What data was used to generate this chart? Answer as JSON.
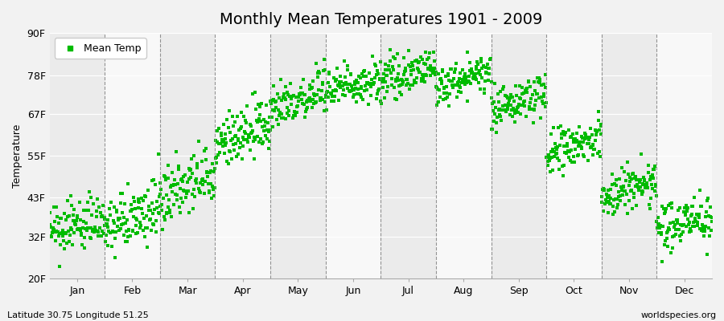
{
  "title": "Monthly Mean Temperatures 1901 - 2009",
  "ylabel": "Temperature",
  "subtitle_left": "Latitude 30.75 Longitude 51.25",
  "subtitle_right": "worldspecies.org",
  "legend_label": "Mean Temp",
  "dot_color": "#00bb00",
  "background_color": "#f2f2f2",
  "plot_bg_color": "#ebebeb",
  "stripe_color": "#f8f8f8",
  "ylim": [
    20,
    90
  ],
  "yticks": [
    20,
    32,
    43,
    55,
    67,
    78,
    90
  ],
  "ytick_labels": [
    "20F",
    "32F",
    "43F",
    "55F",
    "67F",
    "78F",
    "90F"
  ],
  "months": [
    "Jan",
    "Feb",
    "Mar",
    "Apr",
    "May",
    "Jun",
    "Jul",
    "Aug",
    "Sep",
    "Oct",
    "Nov",
    "Dec"
  ],
  "month_mean_start_F": [
    33.0,
    34.0,
    42.0,
    58.0,
    69.0,
    73.0,
    76.0,
    74.5,
    68.0,
    55.0,
    43.0,
    34.0
  ],
  "month_mean_end_F": [
    37.0,
    40.0,
    50.0,
    64.0,
    74.0,
    78.0,
    80.5,
    79.0,
    73.0,
    60.0,
    48.0,
    38.5
  ],
  "month_noise_F": [
    3.5,
    4.0,
    4.5,
    4.0,
    3.5,
    3.0,
    2.5,
    2.5,
    3.0,
    3.5,
    3.5,
    3.5
  ],
  "n_years": 109,
  "marker_size": 5,
  "title_fontsize": 14,
  "axis_fontsize": 9,
  "tick_fontsize": 9,
  "legend_fontsize": 9,
  "subtitle_fontsize": 8
}
